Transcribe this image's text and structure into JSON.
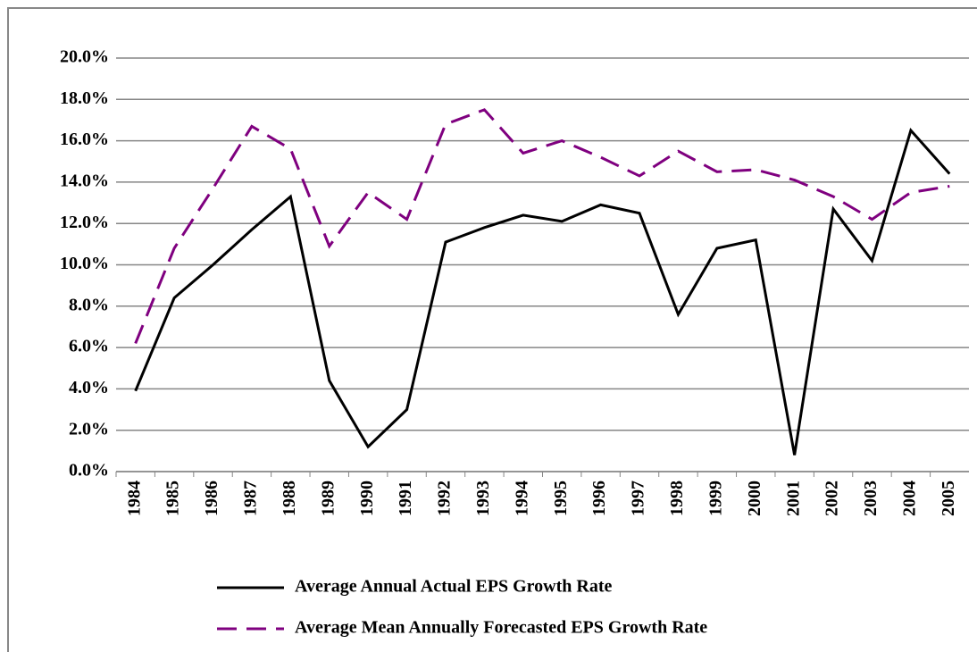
{
  "chart_data": {
    "type": "line",
    "categories": [
      "1984",
      "1985",
      "1986",
      "1987",
      "1988",
      "1989",
      "1990",
      "1991",
      "1992",
      "1993",
      "1994",
      "1995",
      "1996",
      "1997",
      "1998",
      "1999",
      "2000",
      "2001",
      "2002",
      "2003",
      "2004",
      "2005"
    ],
    "series": [
      {
        "name": "Average Annual Actual EPS Growth Rate",
        "color": "#000000",
        "line_style": "solid",
        "values": [
          3.9,
          8.4,
          10.0,
          11.7,
          13.3,
          4.4,
          1.2,
          3.0,
          11.1,
          11.8,
          12.4,
          12.1,
          12.9,
          12.5,
          7.6,
          10.8,
          11.2,
          0.8,
          12.7,
          10.2,
          16.5,
          14.4
        ]
      },
      {
        "name": "Average Mean Annually Forecasted EPS Growth Rate",
        "color": "#7f007f",
        "line_style": "dashed",
        "values": [
          6.2,
          10.8,
          13.7,
          16.7,
          15.6,
          10.9,
          13.5,
          12.2,
          16.8,
          17.5,
          15.4,
          16.0,
          15.2,
          14.3,
          15.5,
          14.5,
          14.6,
          14.1,
          13.3,
          12.2,
          13.5,
          13.8
        ]
      }
    ],
    "ylim": [
      0,
      20
    ],
    "yticks": [
      {
        "value": 0,
        "label": "0.0%"
      },
      {
        "value": 2,
        "label": "2.0%"
      },
      {
        "value": 4,
        "label": "4.0%"
      },
      {
        "value": 6,
        "label": "6.0%"
      },
      {
        "value": 8,
        "label": "8.0%"
      },
      {
        "value": 10,
        "label": "10.0%"
      },
      {
        "value": 12,
        "label": "12.0%"
      },
      {
        "value": 14,
        "label": "14.0%"
      },
      {
        "value": 16,
        "label": "16.0%"
      },
      {
        "value": 18,
        "label": "18.0%"
      },
      {
        "value": 20,
        "label": "20.0%"
      }
    ],
    "grid": true,
    "legend": "bottom"
  }
}
